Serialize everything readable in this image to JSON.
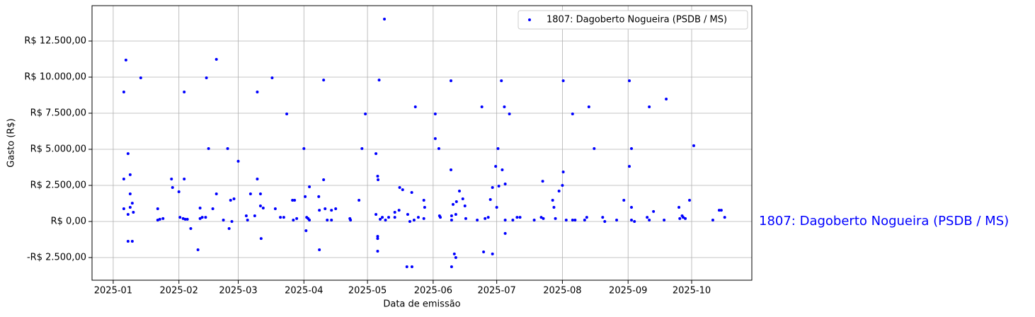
{
  "chart_data": {
    "type": "scatter",
    "xlabel": "Data de emissão",
    "ylabel": "Gasto (R$)",
    "annotation": "1807: Dagoberto Nogueira (PSDB / MS)",
    "legend": "upper right",
    "grid": true,
    "xlim": [
      -10,
      301.4
    ],
    "ylim": [
      -4069,
      14951
    ],
    "xticks": [
      {
        "value": 0,
        "label": "2025-01"
      },
      {
        "value": 31,
        "label": "2025-02"
      },
      {
        "value": 59,
        "label": "2025-03"
      },
      {
        "value": 90,
        "label": "2025-04"
      },
      {
        "value": 120,
        "label": "2025-05"
      },
      {
        "value": 151,
        "label": "2025-06"
      },
      {
        "value": 181,
        "label": "2025-07"
      },
      {
        "value": 212,
        "label": "2025-08"
      },
      {
        "value": 243,
        "label": "2025-09"
      },
      {
        "value": 273,
        "label": "2025-10"
      }
    ],
    "yticks": [
      {
        "value": -2500,
        "label": "-R$ 2.500,00"
      },
      {
        "value": 0,
        "label": "R$ 0,00"
      },
      {
        "value": 2500,
        "label": "R$ 2.500,00"
      },
      {
        "value": 5000,
        "label": "R$ 5.000,00"
      },
      {
        "value": 7500,
        "label": "R$ 7.500,00"
      },
      {
        "value": 10000,
        "label": "R$ 10.000,00"
      },
      {
        "value": 12500,
        "label": "R$ 12.500,00"
      }
    ],
    "series": [
      {
        "name": "1807: Dagoberto Nogueira (PSDB / MS)",
        "color": "#0000ff",
        "x": [
          5,
          6,
          5,
          5,
          7,
          8,
          8,
          7,
          8,
          9,
          9.5,
          7,
          9,
          13,
          21,
          21,
          22,
          23.5,
          27.5,
          28,
          31,
          31.5,
          33,
          34,
          33.5,
          33.5,
          35,
          36.6,
          40,
          41,
          41,
          42,
          43.6,
          44,
          45,
          47,
          48.7,
          48.7,
          52,
          54,
          54.7,
          55.4,
          57,
          56,
          59,
          62.8,
          63.4,
          64.8,
          66.8,
          68,
          68,
          69.5,
          69.5,
          69.8,
          70.8,
          75,
          76.5,
          78.9,
          80.5,
          81.9,
          84.6,
          85.6,
          85,
          86.6,
          90,
          90.6,
          91,
          91.3,
          92,
          92.6,
          92.6,
          97,
          97.3,
          97.3,
          99.3,
          99.3,
          100,
          101,
          103,
          103,
          105,
          111.7,
          112,
          116,
          117.4,
          119,
          124,
          124.8,
          125,
          124,
          124.8,
          124.8,
          124.8,
          125.5,
          126,
          127,
          128,
          128.5,
          130,
          132.9,
          132.9,
          134.9,
          135.2,
          136.6,
          138.6,
          141,
          139,
          140,
          140.9,
          142,
          142.6,
          144,
          146.6,
          147,
          146.6,
          152,
          152,
          153.7,
          154,
          154.4,
          159.4,
          159.4,
          159.7,
          159.7,
          159.7,
          160.4,
          161,
          161.7,
          161.7,
          162,
          163.4,
          165,
          166,
          166.4,
          171.8,
          174,
          174.8,
          175.5,
          177,
          178,
          179,
          179,
          180.5,
          181,
          181.6,
          182,
          183.2,
          183.6,
          184.6,
          185,
          185,
          185,
          187,
          188.6,
          190.6,
          192,
          198.7,
          202,
          202.7,
          203,
          207.4,
          208,
          208.7,
          210.4,
          212.4,
          212.4,
          212,
          213.8,
          216.8,
          216.8,
          218,
          222.5,
          223.5,
          224.5,
          227,
          231,
          232,
          237.6,
          241,
          243.6,
          243.6,
          244.6,
          244.6,
          244.6,
          246,
          252,
          253,
          253,
          255,
          260,
          261,
          267,
          267.4,
          268.5,
          269,
          270,
          272,
          274,
          283,
          286,
          287,
          288.6
        ],
        "values": [
          8970,
          11180,
          2940,
          880,
          4700,
          3240,
          1910,
          490,
          980,
          1270,
          640,
          -1370,
          -1370,
          9950,
          880,
          100,
          150,
          200,
          2940,
          2350,
          2060,
          290,
          200,
          150,
          2940,
          8970,
          150,
          -490,
          -1960,
          930,
          200,
          290,
          290,
          9950,
          5050,
          880,
          1910,
          11230,
          100,
          5050,
          -490,
          1470,
          1570,
          0,
          4170,
          390,
          100,
          1910,
          390,
          2940,
          8970,
          1910,
          1080,
          -1180,
          930,
          9950,
          880,
          290,
          290,
          7450,
          1470,
          1470,
          100,
          200,
          5050,
          1720,
          -640,
          290,
          200,
          2400,
          100,
          1720,
          -1960,
          780,
          2890,
          9800,
          880,
          100,
          780,
          100,
          880,
          200,
          100,
          1470,
          5050,
          7450,
          4700,
          3140,
          2890,
          490,
          -1030,
          -1180,
          -2060,
          9800,
          150,
          290,
          14020,
          100,
          290,
          640,
          290,
          780,
          2350,
          2200,
          -3140,
          -3140,
          490,
          0,
          2010,
          100,
          7940,
          290,
          1470,
          980,
          200,
          7450,
          5740,
          5050,
          390,
          290,
          3580,
          9750,
          -3140,
          100,
          390,
          1180,
          -2250,
          -2500,
          490,
          1370,
          2110,
          1570,
          1080,
          200,
          100,
          7940,
          -2110,
          200,
          290,
          1520,
          -2250,
          2350,
          3820,
          980,
          5050,
          2450,
          9750,
          3580,
          7940,
          2600,
          -830,
          100,
          7450,
          100,
          290,
          290,
          100,
          290,
          2790,
          200,
          1470,
          980,
          200,
          2110,
          9750,
          3430,
          2500,
          100,
          7450,
          100,
          100,
          100,
          290,
          7940,
          5050,
          290,
          0,
          100,
          1470,
          9750,
          3820,
          5050,
          980,
          100,
          0,
          290,
          7940,
          100,
          690,
          100,
          8480,
          980,
          200,
          390,
          290,
          200,
          1470,
          5250,
          100,
          780,
          780,
          290
        ]
      }
    ]
  }
}
